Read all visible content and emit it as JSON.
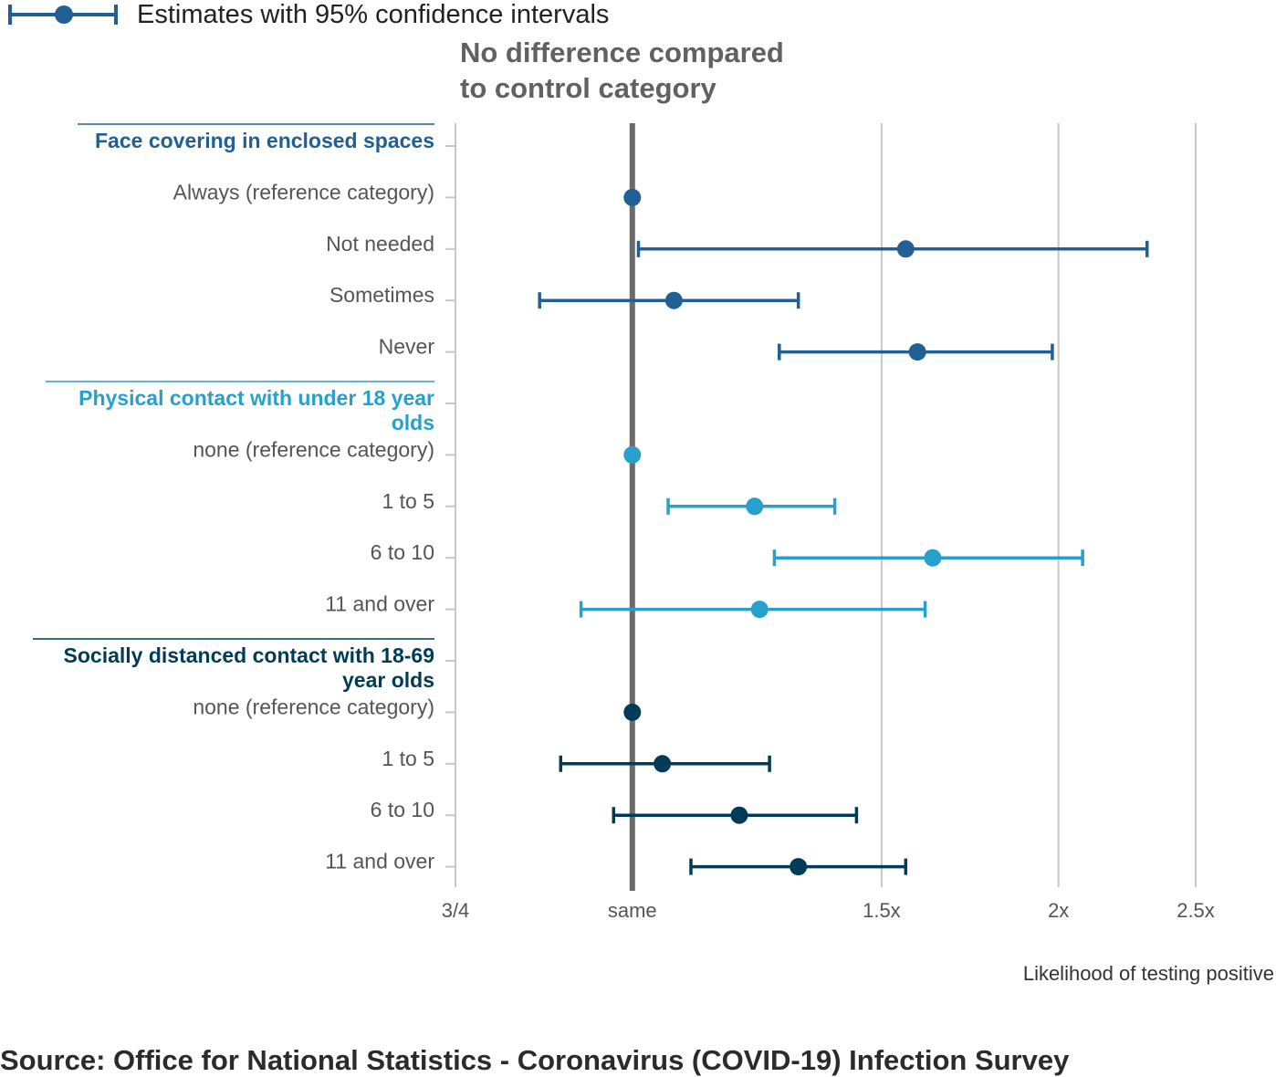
{
  "chart_data": {
    "type": "forest",
    "legend": "Estimates with 95% confidence intervals",
    "reference_annotation": [
      "No difference compared",
      "to control category"
    ],
    "xlabel": "Likelihood of testing positive",
    "source": "Source: Office for National Statistics - Coronavirus (COVID-19) Infection Survey",
    "x_scale": "log",
    "xlim": [
      0.75,
      2.5
    ],
    "ticks": [
      {
        "value": 0.75,
        "label": "3/4"
      },
      {
        "value": 1,
        "label": "same"
      },
      {
        "value": 1.5,
        "label": "1.5x"
      },
      {
        "value": 2,
        "label": "2x"
      },
      {
        "value": 2.5,
        "label": "2.5x"
      }
    ],
    "reference_value": 1,
    "grid": "vertical",
    "groups": [
      {
        "name": "Face covering in enclosed spaces",
        "name_lines": [
          "Face covering in enclosed spaces"
        ],
        "color": "#206095",
        "rows": [
          {
            "label": "Always (reference category)",
            "estimate": 1.0
          },
          {
            "label": "Not needed",
            "estimate": 1.56,
            "lower": 1.01,
            "upper": 2.31
          },
          {
            "label": "Sometimes",
            "estimate": 1.07,
            "lower": 0.86,
            "upper": 1.31
          },
          {
            "label": "Never",
            "estimate": 1.59,
            "lower": 1.27,
            "upper": 1.98
          }
        ]
      },
      {
        "name": "Physical contact with under 18 year olds",
        "name_lines": [
          "Physical contact with under 18 year",
          "olds"
        ],
        "color": "#27a0cc",
        "rows": [
          {
            "label": "none (reference category)",
            "estimate": 1.0
          },
          {
            "label": "1 to 5",
            "estimate": 1.22,
            "lower": 1.06,
            "upper": 1.39
          },
          {
            "label": "6 to 10",
            "estimate": 1.63,
            "lower": 1.26,
            "upper": 2.08
          },
          {
            "label": "11 and over",
            "estimate": 1.23,
            "lower": 0.92,
            "upper": 1.61
          }
        ]
      },
      {
        "name": "Socially distanced contact with 18-69 year olds",
        "name_lines": [
          "Socially distanced contact with 18-69",
          "year olds"
        ],
        "color": "#003c57",
        "rows": [
          {
            "label": "none (reference category)",
            "estimate": 1.0
          },
          {
            "label": "1 to 5",
            "estimate": 1.05,
            "lower": 0.89,
            "upper": 1.25
          },
          {
            "label": "6 to 10",
            "estimate": 1.19,
            "lower": 0.97,
            "upper": 1.44
          },
          {
            "label": "11 and over",
            "estimate": 1.31,
            "lower": 1.1,
            "upper": 1.56
          }
        ]
      }
    ]
  }
}
